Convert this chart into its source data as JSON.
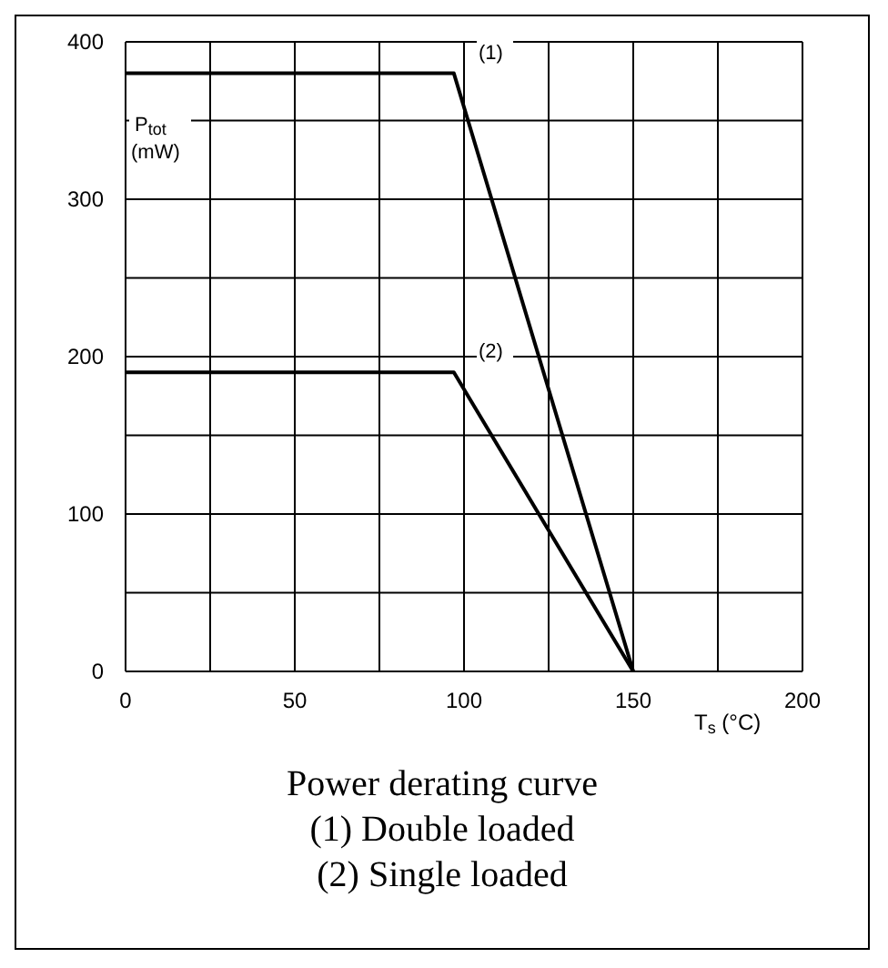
{
  "chart_data": {
    "type": "line",
    "title": "Power derating curve",
    "xlabel": "T$_{s}$ (°C)",
    "ylabel": "P$_{tot}$ (mW)",
    "series": [
      {
        "x": [
          0,
          97,
          150
        ],
        "values": [
          380,
          380,
          0
        ],
        "color": "#000000"
      },
      {
        "x": [
          0,
          97,
          150
        ],
        "values": [
          190,
          190,
          0
        ],
        "color": "#000000"
      }
    ],
    "annotations": [
      {
        "text": "(1)",
        "x": 100,
        "y": 380
      },
      {
        "text": "(2)",
        "x": 100,
        "y": 190
      },
      "(1) Double loaded",
      "(2) Single loaded"
    ],
    "xlim": [
      0,
      200
    ],
    "xticks": [
      0,
      {
        "value": 25,
        "label": null
      },
      50,
      {
        "value": 75,
        "label": null
      },
      100,
      {
        "value": 125,
        "label": null
      },
      150,
      {
        "value": 175,
        "label": null
      },
      200
    ],
    "ylim": [
      0,
      400
    ],
    "yticks": [
      0,
      {
        "value": 50,
        "label": null
      },
      100,
      {
        "value": 150,
        "label": null
      },
      200,
      {
        "value": 250,
        "label": null
      },
      300,
      {
        "value": 350,
        "label": null
      },
      400
    ],
    "grid": true,
    "marker": "none",
    "line_style": "solid"
  }
}
